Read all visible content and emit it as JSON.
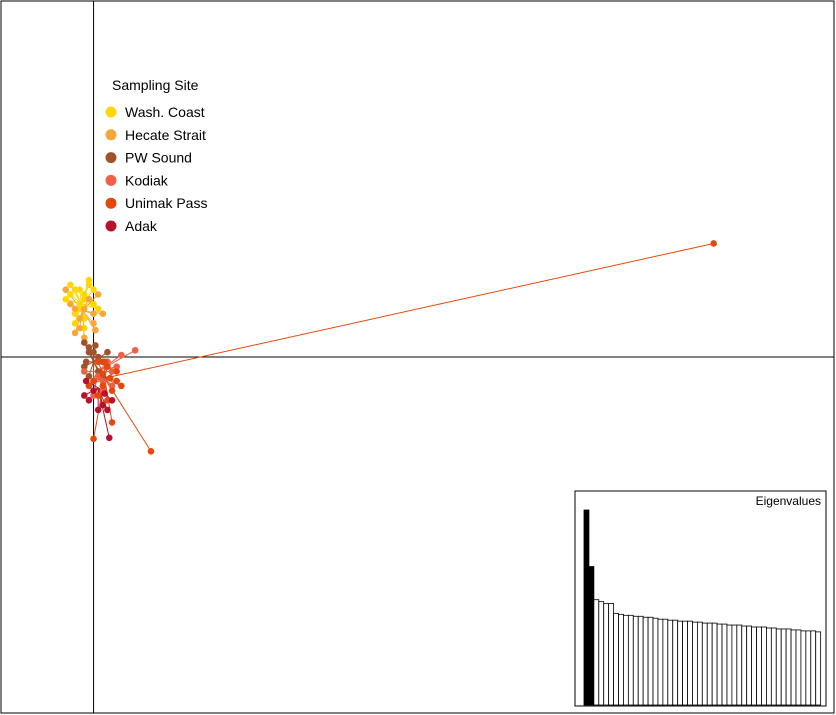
{
  "chart_data": [
    {
      "type": "scatter",
      "title": "",
      "xlabel": "",
      "ylabel": "",
      "grid": false,
      "axes": "cross at origin",
      "xlim": [
        -1.0,
        8.0
      ],
      "ylim": [
        -3.7,
        3.7
      ],
      "legend": {
        "title": "Sampling Site",
        "placement": "top-left",
        "entries": [
          {
            "name": "Wash. Coast",
            "color": "#FFD700"
          },
          {
            "name": "Hecate Strait",
            "color": "#F7A73A"
          },
          {
            "name": "PW Sound",
            "color": "#A0522D"
          },
          {
            "name": "Kodiak",
            "color": "#EE6048"
          },
          {
            "name": "Unimak Pass",
            "color": "#E4480C"
          },
          {
            "name": "Adak",
            "color": "#B8102A"
          }
        ]
      },
      "series": [
        {
          "name": "Wash. Coast",
          "centroid": [
            -0.13,
            0.55
          ],
          "points": [
            [
              -0.2,
              0.7
            ],
            [
              -0.1,
              0.6
            ],
            [
              -0.05,
              0.75
            ],
            [
              -0.15,
              0.5
            ],
            [
              -0.25,
              0.65
            ],
            [
              -0.1,
              0.4
            ],
            [
              0.0,
              0.55
            ],
            [
              -0.2,
              0.45
            ],
            [
              -0.05,
              0.8
            ],
            [
              -0.3,
              0.6
            ],
            [
              -0.15,
              0.7
            ],
            [
              0.05,
              0.5
            ],
            [
              -0.1,
              0.3
            ],
            [
              -0.2,
              0.35
            ],
            [
              -0.25,
              0.75
            ],
            [
              -0.1,
              0.65
            ],
            [
              0.0,
              0.7
            ],
            [
              -0.15,
              0.55
            ]
          ]
        },
        {
          "name": "Hecate Strait",
          "centroid": [
            -0.12,
            0.48
          ],
          "points": [
            [
              -0.25,
              0.55
            ],
            [
              -0.15,
              0.4
            ],
            [
              0.0,
              0.35
            ],
            [
              -0.2,
              0.25
            ],
            [
              -0.05,
              0.6
            ],
            [
              0.1,
              0.45
            ],
            [
              -0.3,
              0.7
            ],
            [
              -0.1,
              0.2
            ],
            [
              0.05,
              0.65
            ],
            [
              -0.2,
              0.5
            ],
            [
              -0.15,
              0.3
            ],
            [
              0.0,
              0.45
            ],
            [
              -0.1,
              0.5
            ],
            [
              0.02,
              0.28
            ]
          ]
        },
        {
          "name": "PW Sound",
          "centroid": [
            0.0,
            -0.05
          ],
          "points": [
            [
              -0.05,
              0.1
            ],
            [
              0.05,
              0.0
            ],
            [
              -0.1,
              -0.1
            ],
            [
              0.1,
              -0.05
            ],
            [
              0.0,
              0.05
            ],
            [
              -0.05,
              -0.2
            ],
            [
              0.15,
              0.05
            ],
            [
              0.05,
              -0.15
            ],
            [
              -0.1,
              0.15
            ],
            [
              0.0,
              -0.25
            ],
            [
              -0.05,
              0.05
            ],
            [
              0.1,
              -0.2
            ],
            [
              -0.08,
              -0.05
            ],
            [
              0.02,
              0.12
            ]
          ]
        },
        {
          "name": "Kodiak",
          "centroid": [
            0.05,
            -0.15
          ],
          "points": [
            [
              0.3,
              0.02
            ],
            [
              0.45,
              0.07
            ],
            [
              0.25,
              -0.1
            ],
            [
              0.1,
              -0.25
            ],
            [
              0.0,
              -0.4
            ],
            [
              0.2,
              -0.15
            ],
            [
              -0.05,
              -0.3
            ],
            [
              0.15,
              -0.05
            ],
            [
              0.05,
              -0.2
            ],
            [
              -0.1,
              -0.15
            ],
            [
              0.1,
              -0.35
            ],
            [
              0.2,
              -0.3
            ]
          ]
        },
        {
          "name": "Unimak Pass",
          "centroid": [
            0.12,
            -0.22
          ],
          "points": [
            [
              6.7,
              1.18
            ],
            [
              0.62,
              -0.98
            ],
            [
              0.0,
              -0.85
            ],
            [
              0.2,
              -0.68
            ],
            [
              0.25,
              -0.15
            ],
            [
              0.1,
              -0.3
            ],
            [
              0.15,
              -0.1
            ],
            [
              0.0,
              -0.25
            ],
            [
              0.2,
              -0.35
            ],
            [
              0.05,
              -0.05
            ],
            [
              0.25,
              -0.25
            ],
            [
              0.15,
              -0.45
            ],
            [
              -0.05,
              -0.3
            ],
            [
              0.1,
              -0.18
            ],
            [
              0.3,
              -0.3
            ],
            [
              0.05,
              -0.4
            ],
            [
              0.18,
              -0.22
            ],
            [
              0.12,
              -0.05
            ]
          ]
        },
        {
          "name": "Adak",
          "centroid": [
            0.05,
            -0.32
          ],
          "points": [
            [
              0.17,
              -0.84
            ],
            [
              0.15,
              -0.55
            ],
            [
              -0.05,
              -0.45
            ],
            [
              0.1,
              -0.5
            ],
            [
              0.0,
              -0.35
            ],
            [
              0.2,
              -0.45
            ],
            [
              -0.1,
              -0.4
            ],
            [
              0.05,
              -0.55
            ],
            [
              -0.08,
              -0.25
            ],
            [
              0.12,
              -0.38
            ]
          ]
        }
      ]
    },
    {
      "type": "bar",
      "title": "Eigenvalues",
      "placement": "bottom-right",
      "values": [
        1.0,
        0.71,
        0.54,
        0.53,
        0.52,
        0.52,
        0.47,
        0.465,
        0.46,
        0.46,
        0.455,
        0.455,
        0.45,
        0.45,
        0.445,
        0.44,
        0.44,
        0.435,
        0.435,
        0.43,
        0.43,
        0.43,
        0.425,
        0.425,
        0.42,
        0.42,
        0.42,
        0.415,
        0.415,
        0.41,
        0.41,
        0.41,
        0.405,
        0.405,
        0.4,
        0.4,
        0.4,
        0.395,
        0.395,
        0.39,
        0.39,
        0.39,
        0.385,
        0.385,
        0.38,
        0.38,
        0.38,
        0.375
      ],
      "highlighted": [
        1,
        2
      ],
      "highlight_color": "#000000",
      "bar_color": "#ffffff"
    }
  ]
}
